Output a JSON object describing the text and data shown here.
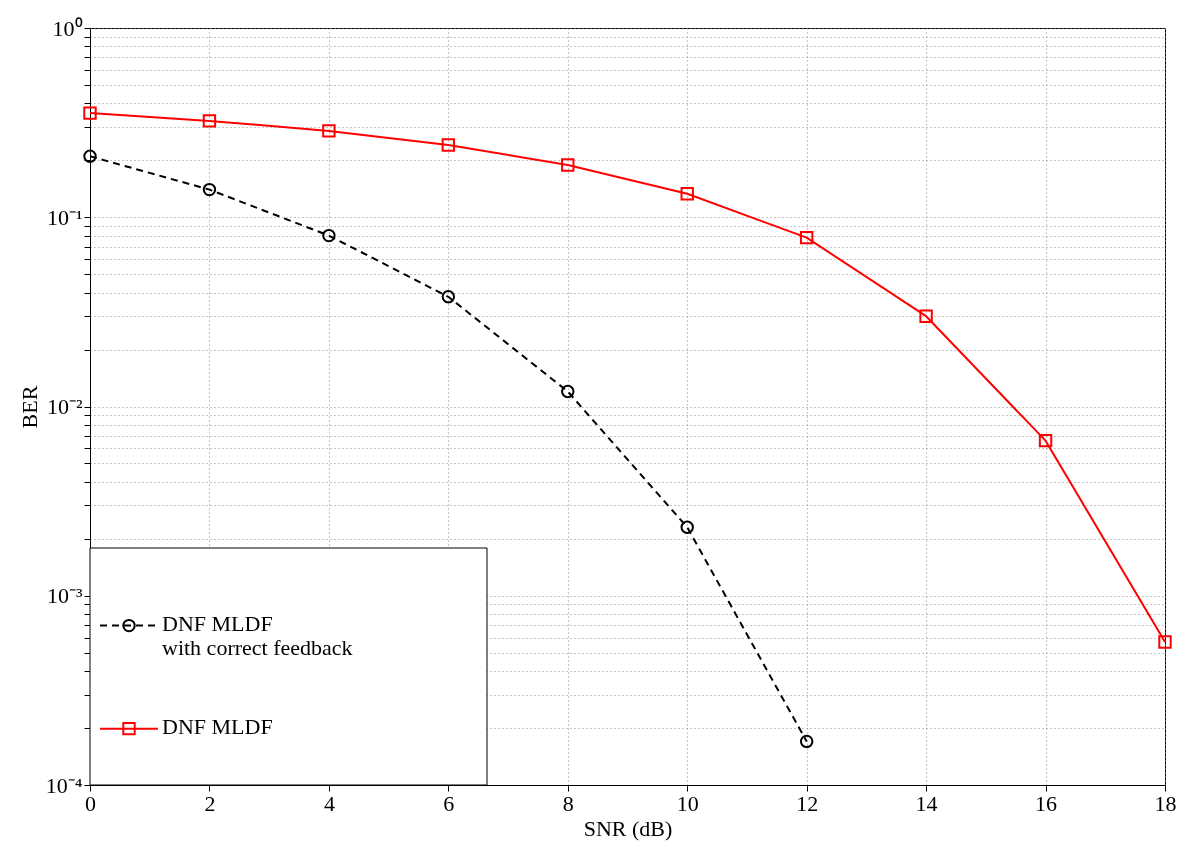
{
  "chart_data": {
    "type": "line",
    "xlabel": "SNR (dB)",
    "ylabel": "BER",
    "log": "y",
    "x": [
      0,
      2,
      4,
      6,
      8,
      10,
      12,
      14,
      16,
      18
    ],
    "series": [
      {
        "name": "DNF MLDF\nwith correct feedback",
        "color": "#000000",
        "line_style": "dashed",
        "marker": "circle",
        "x": [
          0,
          2,
          4,
          6,
          8,
          10,
          12
        ],
        "values": [
          0.21,
          0.14,
          0.08,
          0.038,
          0.012,
          0.0023,
          0.00017
        ]
      },
      {
        "name": "DNF MLDF",
        "color": "#ff0000",
        "line_style": "solid",
        "marker": "square",
        "values": [
          0.355,
          0.323,
          0.286,
          0.241,
          0.189,
          0.133,
          0.078,
          0.03,
          0.0066,
          0.00057
        ]
      }
    ],
    "xlim": [
      0,
      18
    ],
    "xticks": [
      0,
      2,
      4,
      6,
      8,
      10,
      12,
      14,
      16,
      18
    ],
    "ylim": [
      0.0001,
      1
    ],
    "yticks": [
      {
        "value": 0.0001,
        "label": "10⁻⁴"
      },
      {
        "value": 0.0002,
        "label": null
      },
      {
        "value": 0.0003,
        "label": null
      },
      {
        "value": 0.0004,
        "label": null
      },
      {
        "value": 0.0005,
        "label": null
      },
      {
        "value": 0.0006,
        "label": null
      },
      {
        "value": 0.0007,
        "label": null
      },
      {
        "value": 0.0008,
        "label": null
      },
      {
        "value": 0.0009,
        "label": null
      },
      {
        "value": 0.001,
        "label": "10⁻³"
      },
      {
        "value": 0.002,
        "label": null
      },
      {
        "value": 0.003,
        "label": null
      },
      {
        "value": 0.004,
        "label": null
      },
      {
        "value": 0.005,
        "label": null
      },
      {
        "value": 0.006,
        "label": null
      },
      {
        "value": 0.007,
        "label": null
      },
      {
        "value": 0.008,
        "label": null
      },
      {
        "value": 0.009,
        "label": null
      },
      {
        "value": 0.01,
        "label": "10⁻²"
      },
      {
        "value": 0.02,
        "label": null
      },
      {
        "value": 0.03,
        "label": null
      },
      {
        "value": 0.04,
        "label": null
      },
      {
        "value": 0.05,
        "label": null
      },
      {
        "value": 0.06,
        "label": null
      },
      {
        "value": 0.07,
        "label": null
      },
      {
        "value": 0.08,
        "label": null
      },
      {
        "value": 0.09,
        "label": null
      },
      {
        "value": 0.1,
        "label": "10⁻¹"
      },
      {
        "value": 0.2,
        "label": null
      },
      {
        "value": 0.3,
        "label": null
      },
      {
        "value": 0.4,
        "label": null
      },
      {
        "value": 0.5,
        "label": null
      },
      {
        "value": 0.6,
        "label": null
      },
      {
        "value": 0.7,
        "label": null
      },
      {
        "value": 0.8,
        "label": null
      },
      {
        "value": 0.9,
        "label": null
      },
      {
        "value": 1,
        "label": "10⁰"
      }
    ],
    "grid": true,
    "legend": "bottom left"
  }
}
